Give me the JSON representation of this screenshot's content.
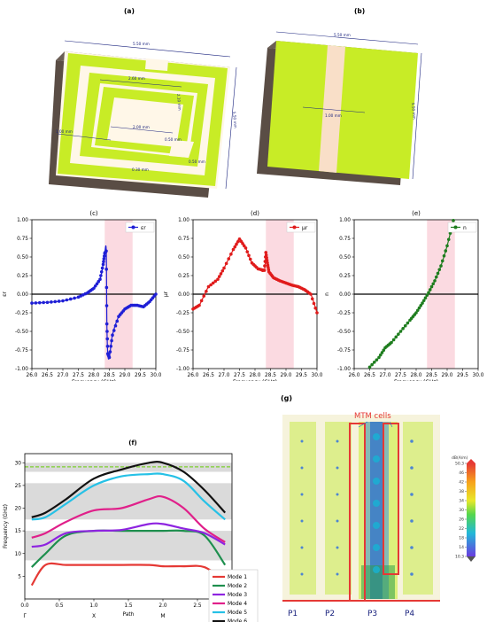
{
  "panel_a": {
    "label": "(a)",
    "dims": [
      "5.50 mm",
      "2.60 mm",
      "2.10 mm",
      "5.50 mm",
      "1.00 mm",
      "2.00 mm",
      "0.50 mm",
      "0.50 mm",
      "0.30 mm"
    ]
  },
  "panel_b": {
    "label": "(b)",
    "dims": [
      "5.50 mm",
      "5.50 mm",
      "1.00 mm"
    ]
  },
  "chart_data": [
    {
      "id": "c",
      "type": "line",
      "title": "(c)",
      "xlabel": "Frequency (GHz)",
      "ylabel": "εr",
      "legend": "εr",
      "legend_pos": "top-right",
      "color": "#1f1fd6",
      "xlim": [
        26.0,
        30.0
      ],
      "ylim": [
        -1.0,
        1.0
      ],
      "xticks": [
        "26.0",
        "26.5",
        "27.0",
        "27.5",
        "28.0",
        "28.5",
        "29.0",
        "29.5",
        "30.0"
      ],
      "yticks": [
        "1.00",
        "0.75",
        "0.50",
        "0.25",
        "0.00",
        "-0.25",
        "-0.50",
        "-0.75",
        "-1.00"
      ],
      "band": [
        28.35,
        29.25
      ],
      "x": [
        26.0,
        26.5,
        27.0,
        27.5,
        27.8,
        28.0,
        28.2,
        28.3,
        28.35,
        28.4,
        28.42,
        28.45,
        28.5,
        28.6,
        28.8,
        29.0,
        29.2,
        29.4,
        29.6,
        29.8,
        30.0
      ],
      "y": [
        -0.12,
        -0.11,
        -0.09,
        -0.04,
        0.02,
        0.08,
        0.2,
        0.4,
        0.55,
        0.58,
        -0.4,
        -0.8,
        -0.85,
        -0.55,
        -0.3,
        -0.2,
        -0.15,
        -0.15,
        -0.17,
        -0.1,
        0.0
      ]
    },
    {
      "id": "d",
      "type": "line",
      "title": "(d)",
      "xlabel": "Frequency (GHz)",
      "ylabel": "μr",
      "legend": "μr",
      "legend_pos": "top-right",
      "color": "#e01b1b",
      "xlim": [
        26.0,
        30.0
      ],
      "ylim": [
        -1.0,
        1.0
      ],
      "xticks": [
        "26.0",
        "26.5",
        "27.0",
        "27.5",
        "28.0",
        "28.5",
        "29.0",
        "29.5",
        "30.0"
      ],
      "yticks": [
        "1.00",
        "0.75",
        "0.50",
        "0.25",
        "0.00",
        "-0.25",
        "-0.50",
        "-0.75",
        "-1.00"
      ],
      "band": [
        28.35,
        29.25
      ],
      "x": [
        26.0,
        26.2,
        26.5,
        26.8,
        27.0,
        27.3,
        27.5,
        27.7,
        27.9,
        28.1,
        28.3,
        28.35,
        28.4,
        28.45,
        28.6,
        28.8,
        29.0,
        29.2,
        29.4,
        29.6,
        29.8,
        30.0
      ],
      "y": [
        -0.2,
        -0.15,
        0.1,
        0.2,
        0.35,
        0.6,
        0.74,
        0.62,
        0.42,
        0.34,
        0.32,
        0.56,
        0.42,
        0.3,
        0.22,
        0.18,
        0.15,
        0.12,
        0.1,
        0.06,
        0.0,
        -0.25
      ]
    },
    {
      "id": "e",
      "type": "line",
      "title": "(e)",
      "xlabel": "Frequency (GHz)",
      "ylabel": "n",
      "legend": "n",
      "legend_pos": "top-right",
      "color": "#1e7d1e",
      "xlim": [
        26.0,
        30.0
      ],
      "ylim": [
        -1.0,
        1.0
      ],
      "xticks": [
        "26.0",
        "26.5",
        "27.0",
        "27.5",
        "28.0",
        "28.5",
        "29.0",
        "29.5",
        "30.0"
      ],
      "yticks": [
        "1.00",
        "0.75",
        "0.50",
        "0.25",
        "0.00",
        "-0.25",
        "-0.50",
        "-0.75",
        "-1.00"
      ],
      "band": [
        28.35,
        29.25
      ],
      "x": [
        26.5,
        26.8,
        27.0,
        27.2,
        27.5,
        27.8,
        28.0,
        28.2,
        28.4,
        28.6,
        28.8,
        29.0,
        29.2
      ],
      "y": [
        -0.98,
        -0.85,
        -0.72,
        -0.65,
        -0.5,
        -0.35,
        -0.25,
        -0.12,
        0.02,
        0.18,
        0.38,
        0.65,
        0.99
      ]
    },
    {
      "id": "f",
      "type": "line",
      "title": "(f)",
      "xlabel": "Path",
      "ylabel": "Frequency (GHz)",
      "legend_pos": "right",
      "xlim": [
        0.0,
        3.0
      ],
      "ylim": [
        0,
        32
      ],
      "xticks": [
        "0.0",
        "0.5",
        "1.0",
        "1.5",
        "2.0",
        "2.5",
        "3.0"
      ],
      "yticks": [
        "30",
        "25",
        "20",
        "15",
        "10",
        "5"
      ],
      "sym_labels": [
        "Γ",
        "X",
        "M",
        "Γ"
      ],
      "sym_x": [
        0.0,
        1.0,
        2.0,
        3.0
      ],
      "dashed_line": 29.1,
      "gray_bands": [
        [
          8.5,
          15.0
        ],
        [
          17.5,
          25.5
        ],
        [
          28.0,
          30.0
        ]
      ],
      "x": [
        0.1,
        0.3,
        0.6,
        1.0,
        1.4,
        1.8,
        2.0,
        2.3,
        2.6,
        2.9
      ],
      "series": [
        {
          "name": "Mode 1",
          "color": "#e53935",
          "values": [
            3.0,
            7.5,
            7.5,
            7.5,
            7.5,
            7.5,
            7.2,
            7.2,
            7.0,
            4.0
          ]
        },
        {
          "name": "Mode 2",
          "color": "#1e8f4e",
          "values": [
            7.0,
            10.0,
            14.0,
            15.0,
            15.0,
            15.0,
            15.0,
            15.0,
            14.0,
            7.5
          ]
        },
        {
          "name": "Mode 3",
          "color": "#8e24e0",
          "values": [
            11.5,
            12.0,
            14.5,
            15.0,
            15.2,
            16.5,
            16.5,
            15.5,
            14.5,
            12.0
          ]
        },
        {
          "name": "Mode 4",
          "color": "#e0208a",
          "values": [
            13.5,
            14.5,
            17.0,
            19.5,
            20.0,
            22.0,
            22.5,
            20.0,
            15.5,
            12.5
          ]
        },
        {
          "name": "Mode 5",
          "color": "#26c1e6",
          "values": [
            17.5,
            18.0,
            21.0,
            25.0,
            27.0,
            27.5,
            27.5,
            26.0,
            21.5,
            17.5
          ]
        },
        {
          "name": "Mode 6",
          "color": "#111111",
          "values": [
            18.0,
            19.0,
            22.0,
            26.5,
            28.5,
            30.0,
            30.0,
            28.0,
            24.0,
            19.0
          ]
        }
      ]
    }
  ],
  "panel_g": {
    "label": "(g)",
    "mtm_label": "MTM cells",
    "port_labels": [
      "P1",
      "P2",
      "P3",
      "P4"
    ],
    "colorbar_title": "dB(A/m)",
    "colorbar_ticks": [
      "50.3",
      "46",
      "42",
      "38",
      "34",
      "30",
      "26",
      "22",
      "18",
      "14",
      "10.3"
    ]
  }
}
